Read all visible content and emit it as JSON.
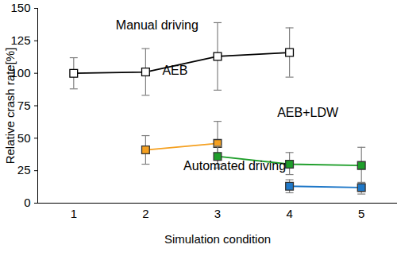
{
  "chart_data": {
    "type": "line",
    "x_label": "Simulation condition",
    "y_label": "Relative crash rate[%]",
    "x": [
      1,
      2,
      3,
      4,
      5
    ],
    "xlim": [
      0.5,
      5.5
    ],
    "xticks": [
      1,
      2,
      3,
      4,
      5
    ],
    "ylim": [
      0,
      150
    ],
    "yticks": [
      0,
      25,
      50,
      75,
      100,
      125,
      150
    ],
    "grid": false,
    "series": [
      {
        "name": "Manual driving",
        "color": "#000000",
        "marker": "open_square",
        "values": [
          100,
          101,
          113,
          116,
          null
        ],
        "error_low": [
          88,
          83,
          87,
          97,
          null
        ],
        "error_high": [
          112,
          119,
          139,
          135,
          null
        ]
      },
      {
        "name": "AEB",
        "color": "#f5a020",
        "marker": "square",
        "values": [
          null,
          41,
          46,
          null,
          null
        ],
        "error_low": [
          null,
          30,
          30,
          null,
          null
        ],
        "error_high": [
          null,
          52,
          63,
          null,
          null
        ]
      },
      {
        "name": "AEB+LDW",
        "color": "#1e9e2a",
        "marker": "square",
        "values": [
          null,
          null,
          36,
          30,
          29
        ],
        "error_low": [
          null,
          null,
          27,
          22,
          15
        ],
        "error_high": [
          null,
          null,
          44,
          39,
          43
        ]
      },
      {
        "name": "Automated driving",
        "color": "#1f78c8",
        "marker": "square",
        "values": [
          null,
          null,
          null,
          13,
          12
        ],
        "error_low": [
          null,
          null,
          null,
          8,
          7
        ],
        "error_high": [
          null,
          null,
          null,
          18,
          16
        ]
      }
    ]
  }
}
